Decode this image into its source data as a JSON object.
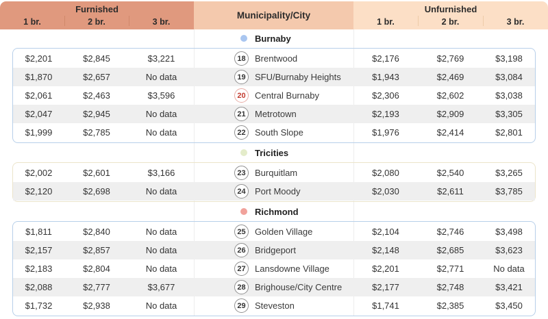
{
  "chart_data": {
    "type": "table",
    "header": {
      "furnished": "Furnished",
      "municipality": "Municipality/City",
      "unfurnished": "Unfurnished",
      "bedroom_columns": [
        "1 br.",
        "2 br.",
        "3 br."
      ]
    },
    "highlight_color": "#c43c30",
    "sections": [
      {
        "name": "Burnaby",
        "dot_color": "#a9c6f0",
        "border_color": "#b7cfe9",
        "rows": [
          {
            "num": "18",
            "city": "Brentwood",
            "highlight": false,
            "furnished": [
              "$2,201",
              "$2,845",
              "$3,221"
            ],
            "unfurnished": [
              "$2,176",
              "$2,769",
              "$3,198"
            ]
          },
          {
            "num": "19",
            "city": "SFU/Burnaby Heights",
            "highlight": false,
            "furnished": [
              "$1,870",
              "$2,657",
              "No data"
            ],
            "unfurnished": [
              "$1,943",
              "$2,469",
              "$3,084"
            ]
          },
          {
            "num": "20",
            "city": "Central Burnaby",
            "highlight": true,
            "furnished": [
              "$2,061",
              "$2,463",
              "$3,596"
            ],
            "unfurnished": [
              "$2,306",
              "$2,602",
              "$3,038"
            ]
          },
          {
            "num": "21",
            "city": "Metrotown",
            "highlight": false,
            "furnished": [
              "$2,047",
              "$2,945",
              "No data"
            ],
            "unfurnished": [
              "$2,193",
              "$2,909",
              "$3,305"
            ]
          },
          {
            "num": "22",
            "city": "South Slope",
            "highlight": false,
            "furnished": [
              "$1,999",
              "$2,785",
              "No data"
            ],
            "unfurnished": [
              "$1,976",
              "$2,414",
              "$2,801"
            ]
          }
        ]
      },
      {
        "name": "Tricities",
        "dot_color": "#e4ecca",
        "border_color": "#ebe4ca",
        "rows": [
          {
            "num": "23",
            "city": "Burquitlam",
            "highlight": false,
            "furnished": [
              "$2,002",
              "$2,601",
              "$3,166"
            ],
            "unfurnished": [
              "$2,080",
              "$2,540",
              "$3,265"
            ]
          },
          {
            "num": "24",
            "city": "Port Moody",
            "highlight": false,
            "furnished": [
              "$2,120",
              "$2,698",
              "No data"
            ],
            "unfurnished": [
              "$2,030",
              "$2,611",
              "$3,785"
            ]
          }
        ]
      },
      {
        "name": "Richmond",
        "dot_color": "#f1a29b",
        "border_color": "#b7cfe9",
        "rows": [
          {
            "num": "25",
            "city": "Golden Village",
            "highlight": false,
            "furnished": [
              "$1,811",
              "$2,840",
              "No data"
            ],
            "unfurnished": [
              "$2,104",
              "$2,746",
              "$3,498"
            ]
          },
          {
            "num": "26",
            "city": "Bridgeport",
            "highlight": false,
            "furnished": [
              "$2,157",
              "$2,857",
              "No data"
            ],
            "unfurnished": [
              "$2,148",
              "$2,685",
              "$3,623"
            ]
          },
          {
            "num": "27",
            "city": "Lansdowne Village",
            "highlight": false,
            "furnished": [
              "$2,183",
              "$2,804",
              "No data"
            ],
            "unfurnished": [
              "$2,201",
              "$2,771",
              "No data"
            ]
          },
          {
            "num": "28",
            "city": "Brighouse/City Centre",
            "highlight": false,
            "furnished": [
              "$2,088",
              "$2,777",
              "$3,677"
            ],
            "unfurnished": [
              "$2,177",
              "$2,748",
              "$3,421"
            ]
          },
          {
            "num": "29",
            "city": "Steveston",
            "highlight": false,
            "furnished": [
              "$1,732",
              "$2,938",
              "No data"
            ],
            "unfurnished": [
              "$1,741",
              "$2,385",
              "$3,450"
            ]
          }
        ]
      }
    ]
  }
}
